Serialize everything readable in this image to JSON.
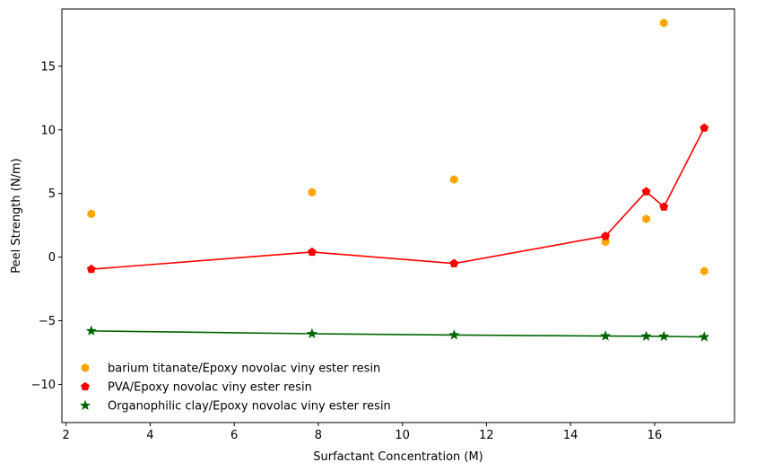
{
  "chart_data": {
    "type": "scatter",
    "xlabel": "Surfactant Concentration (M)",
    "ylabel": "Peel Strength (N/m)",
    "xlim": [
      1.9,
      17.9
    ],
    "ylim": [
      -13,
      19.5
    ],
    "xticks": [
      2,
      4,
      6,
      8,
      10,
      12,
      14,
      16
    ],
    "yticks": [
      -10,
      -5,
      0,
      5,
      10,
      15
    ],
    "grid": false,
    "legend_position": "lower-left",
    "series": [
      {
        "name": "barium titanate/Epoxy novolac viny ester resin",
        "kind": "scatter",
        "marker": "hexagon",
        "color": "#FFA500",
        "x": [
          2.6,
          7.85,
          11.23,
          14.83,
          15.8,
          16.22,
          17.18
        ],
        "y": [
          3.4,
          5.1,
          6.1,
          1.2,
          3.0,
          18.4,
          -1.1
        ]
      },
      {
        "name": "PVA/Epoxy novolac viny ester resin",
        "kind": "line+marker",
        "marker": "pentagon",
        "color": "#FF0000",
        "x": [
          2.6,
          7.85,
          11.23,
          14.83,
          15.8,
          16.22,
          17.18
        ],
        "y": [
          -0.95,
          0.4,
          -0.5,
          1.65,
          5.15,
          3.95,
          10.15
        ]
      },
      {
        "name": "Organophilic clay/Epoxy novolac viny ester resin",
        "kind": "line+marker",
        "marker": "star",
        "color": "#006400",
        "x": [
          2.6,
          7.85,
          11.23,
          14.83,
          15.8,
          16.22,
          17.18
        ],
        "y": [
          -5.8,
          -6.02,
          -6.12,
          -6.2,
          -6.22,
          -6.23,
          -6.27
        ]
      }
    ]
  }
}
